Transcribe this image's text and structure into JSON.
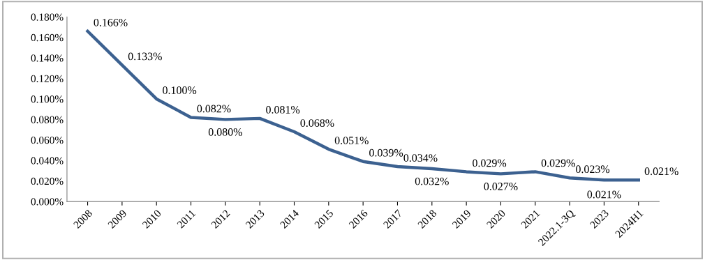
{
  "chart_data": {
    "type": "line",
    "categories": [
      "2008",
      "2009",
      "2010",
      "2011",
      "2012",
      "2013",
      "2014",
      "2015",
      "2016",
      "2017",
      "2018",
      "2019",
      "2020",
      "2021",
      "2022.1-3Q",
      "2023",
      "2024H1"
    ],
    "series": [
      {
        "color": "#3c6190",
        "values": [
          0.166,
          0.133,
          0.1,
          0.082,
          0.08,
          0.081,
          0.068,
          0.051,
          0.039,
          0.034,
          0.032,
          0.029,
          0.027,
          0.029,
          0.023,
          0.021,
          0.021
        ],
        "value_labels": [
          "0.166%",
          "0.133%",
          "0.100%",
          "0.082%",
          "0.080%",
          "0.081%",
          "0.068%",
          "0.051%",
          "0.039%",
          "0.034%",
          "0.032%",
          "0.029%",
          "0.027%",
          "0.029%",
          "0.023%",
          "0.021%",
          "0.021%"
        ]
      }
    ],
    "ylim": [
      0,
      0.18
    ],
    "yticks": [
      {
        "value": 0,
        "label": "0.000%"
      },
      {
        "value": 0.02,
        "label": "0.020%"
      },
      {
        "value": 0.04,
        "label": "0.040%"
      },
      {
        "value": 0.06,
        "label": "0.060%"
      },
      {
        "value": 0.08,
        "label": "0.080%"
      },
      {
        "value": 0.1,
        "label": "0.100%"
      },
      {
        "value": 0.12,
        "label": "0.120%"
      },
      {
        "value": 0.14,
        "label": "0.140%"
      },
      {
        "value": 0.16,
        "label": "0.160%"
      },
      {
        "value": 0.18,
        "label": "0.180%"
      }
    ],
    "grid": false,
    "legend": false,
    "marker": "none",
    "line_style": "solid"
  }
}
